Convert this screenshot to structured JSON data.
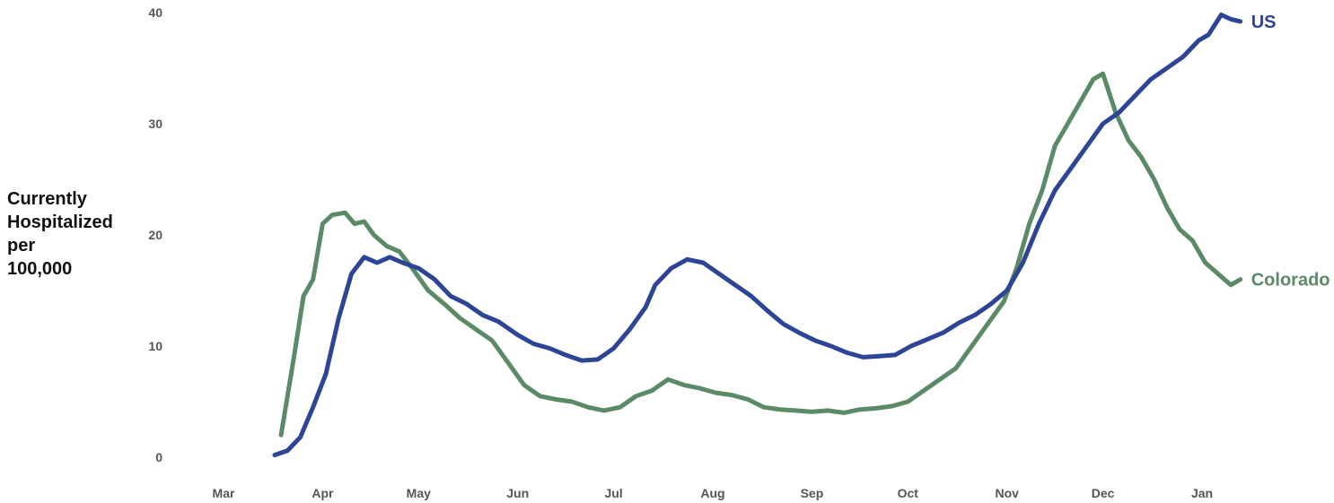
{
  "chart_data": {
    "type": "line",
    "title": "",
    "xlabel": "",
    "ylabel": [
      "Currently",
      "Hospitalized",
      "per",
      "100,000"
    ],
    "ylim": [
      0,
      40
    ],
    "yticks": [
      0,
      10,
      20,
      30,
      40
    ],
    "grid": false,
    "legend": "direct labels at series ends",
    "x_tick_labels": [
      "Mar",
      "Apr",
      "May",
      "Jun",
      "Jul",
      "Aug",
      "Sep",
      "Oct",
      "Nov",
      "Dec",
      "Jan"
    ],
    "x_tick_dates": [
      "2020-03-01",
      "2020-04-01",
      "2020-05-01",
      "2020-06-01",
      "2020-07-01",
      "2020-08-01",
      "2020-09-01",
      "2020-10-01",
      "2020-11-01",
      "2020-12-01",
      "2021-01-01"
    ],
    "series": [
      {
        "name": "US",
        "color": "#2e4595",
        "points": [
          [
            "2020-03-17",
            0.2
          ],
          [
            "2020-03-21",
            0.6
          ],
          [
            "2020-03-25",
            1.8
          ],
          [
            "2020-03-29",
            4.5
          ],
          [
            "2020-04-02",
            7.5
          ],
          [
            "2020-04-06",
            12.5
          ],
          [
            "2020-04-10",
            16.5
          ],
          [
            "2020-04-14",
            18.0
          ],
          [
            "2020-04-18",
            17.5
          ],
          [
            "2020-04-22",
            18.0
          ],
          [
            "2020-04-26",
            17.5
          ],
          [
            "2020-05-01",
            17.0
          ],
          [
            "2020-05-06",
            16.0
          ],
          [
            "2020-05-11",
            14.5
          ],
          [
            "2020-05-16",
            13.8
          ],
          [
            "2020-05-21",
            12.8
          ],
          [
            "2020-05-26",
            12.2
          ],
          [
            "2020-06-01",
            11.0
          ],
          [
            "2020-06-06",
            10.2
          ],
          [
            "2020-06-11",
            9.8
          ],
          [
            "2020-06-16",
            9.2
          ],
          [
            "2020-06-21",
            8.7
          ],
          [
            "2020-06-26",
            8.8
          ],
          [
            "2020-07-01",
            9.8
          ],
          [
            "2020-07-06",
            11.5
          ],
          [
            "2020-07-11",
            13.5
          ],
          [
            "2020-07-14",
            15.5
          ],
          [
            "2020-07-19",
            17.0
          ],
          [
            "2020-07-24",
            17.8
          ],
          [
            "2020-07-29",
            17.5
          ],
          [
            "2020-08-03",
            16.5
          ],
          [
            "2020-08-08",
            15.5
          ],
          [
            "2020-08-13",
            14.5
          ],
          [
            "2020-08-18",
            13.2
          ],
          [
            "2020-08-23",
            12.0
          ],
          [
            "2020-08-28",
            11.2
          ],
          [
            "2020-09-02",
            10.5
          ],
          [
            "2020-09-07",
            10.0
          ],
          [
            "2020-09-12",
            9.4
          ],
          [
            "2020-09-17",
            9.0
          ],
          [
            "2020-09-22",
            9.1
          ],
          [
            "2020-09-27",
            9.2
          ],
          [
            "2020-10-02",
            10.0
          ],
          [
            "2020-10-07",
            10.6
          ],
          [
            "2020-10-12",
            11.2
          ],
          [
            "2020-10-17",
            12.1
          ],
          [
            "2020-10-22",
            12.8
          ],
          [
            "2020-10-27",
            13.8
          ],
          [
            "2020-11-01",
            15.0
          ],
          [
            "2020-11-06",
            17.5
          ],
          [
            "2020-11-11",
            21.0
          ],
          [
            "2020-11-16",
            24.0
          ],
          [
            "2020-11-21",
            26.0
          ],
          [
            "2020-11-26",
            28.0
          ],
          [
            "2020-12-01",
            30.0
          ],
          [
            "2020-12-06",
            31.0
          ],
          [
            "2020-12-11",
            32.5
          ],
          [
            "2020-12-16",
            34.0
          ],
          [
            "2020-12-21",
            35.0
          ],
          [
            "2020-12-26",
            36.0
          ],
          [
            "2020-12-31",
            37.5
          ],
          [
            "2021-01-03",
            38.0
          ],
          [
            "2021-01-07",
            39.8
          ],
          [
            "2021-01-10",
            39.4
          ],
          [
            "2021-01-13",
            39.2
          ]
        ]
      },
      {
        "name": "Colorado",
        "color": "#5b8a67",
        "points": [
          [
            "2020-03-19",
            2.0
          ],
          [
            "2020-03-23",
            9.0
          ],
          [
            "2020-03-26",
            14.5
          ],
          [
            "2020-03-29",
            16.0
          ],
          [
            "2020-04-01",
            21.0
          ],
          [
            "2020-04-04",
            21.8
          ],
          [
            "2020-04-08",
            22.0
          ],
          [
            "2020-04-11",
            21.0
          ],
          [
            "2020-04-14",
            21.2
          ],
          [
            "2020-04-17",
            20.0
          ],
          [
            "2020-04-21",
            19.0
          ],
          [
            "2020-04-25",
            18.5
          ],
          [
            "2020-04-29",
            17.0
          ],
          [
            "2020-05-04",
            15.0
          ],
          [
            "2020-05-09",
            13.8
          ],
          [
            "2020-05-14",
            12.5
          ],
          [
            "2020-05-19",
            11.5
          ],
          [
            "2020-05-24",
            10.5
          ],
          [
            "2020-05-29",
            8.5
          ],
          [
            "2020-06-03",
            6.5
          ],
          [
            "2020-06-08",
            5.5
          ],
          [
            "2020-06-13",
            5.2
          ],
          [
            "2020-06-18",
            5.0
          ],
          [
            "2020-06-23",
            4.5
          ],
          [
            "2020-06-28",
            4.2
          ],
          [
            "2020-07-03",
            4.5
          ],
          [
            "2020-07-08",
            5.5
          ],
          [
            "2020-07-13",
            6.0
          ],
          [
            "2020-07-18",
            7.0
          ],
          [
            "2020-07-23",
            6.5
          ],
          [
            "2020-07-28",
            6.2
          ],
          [
            "2020-08-02",
            5.8
          ],
          [
            "2020-08-07",
            5.6
          ],
          [
            "2020-08-12",
            5.2
          ],
          [
            "2020-08-17",
            4.5
          ],
          [
            "2020-08-22",
            4.3
          ],
          [
            "2020-08-27",
            4.2
          ],
          [
            "2020-09-01",
            4.1
          ],
          [
            "2020-09-06",
            4.2
          ],
          [
            "2020-09-11",
            4.0
          ],
          [
            "2020-09-16",
            4.3
          ],
          [
            "2020-09-21",
            4.4
          ],
          [
            "2020-09-26",
            4.6
          ],
          [
            "2020-10-01",
            5.0
          ],
          [
            "2020-10-06",
            6.0
          ],
          [
            "2020-10-11",
            7.0
          ],
          [
            "2020-10-16",
            8.0
          ],
          [
            "2020-10-21",
            10.0
          ],
          [
            "2020-10-26",
            12.0
          ],
          [
            "2020-10-31",
            14.0
          ],
          [
            "2020-11-04",
            17.0
          ],
          [
            "2020-11-08",
            21.0
          ],
          [
            "2020-11-12",
            24.0
          ],
          [
            "2020-11-16",
            28.0
          ],
          [
            "2020-11-20",
            30.0
          ],
          [
            "2020-11-24",
            32.0
          ],
          [
            "2020-11-28",
            34.0
          ],
          [
            "2020-12-01",
            34.5
          ],
          [
            "2020-12-05",
            31.0
          ],
          [
            "2020-12-09",
            28.5
          ],
          [
            "2020-12-13",
            27.0
          ],
          [
            "2020-12-17",
            25.0
          ],
          [
            "2020-12-21",
            22.5
          ],
          [
            "2020-12-25",
            20.5
          ],
          [
            "2020-12-29",
            19.5
          ],
          [
            "2021-01-02",
            17.5
          ],
          [
            "2021-01-06",
            16.5
          ],
          [
            "2021-01-10",
            15.5
          ],
          [
            "2021-01-13",
            16.0
          ]
        ]
      }
    ]
  }
}
